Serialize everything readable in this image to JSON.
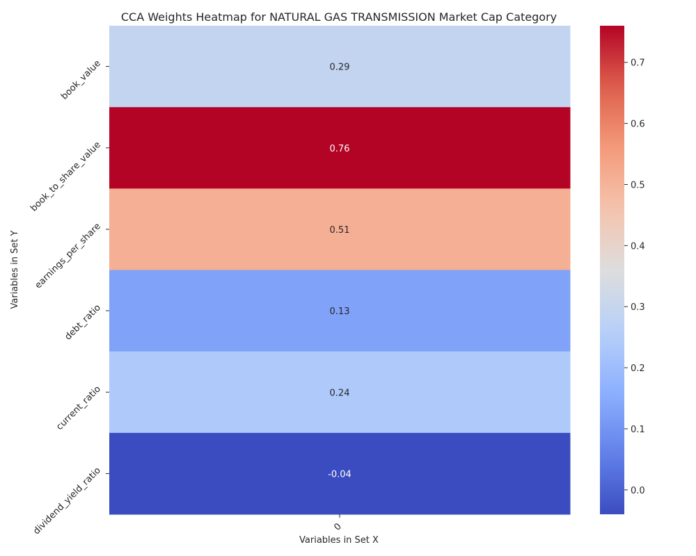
{
  "chart_data": {
    "type": "heatmap",
    "title": "CCA Weights Heatmap for NATURAL GAS TRANSMISSION Market Cap Category",
    "xlabel": "Variables in Set X",
    "ylabel": "Variables in Set Y",
    "x_categories": [
      "0"
    ],
    "y_categories": [
      "book_value",
      "book_to_share_value",
      "earnings_per_share",
      "debt_ratio",
      "current_ratio",
      "dividend_yield_ratio"
    ],
    "values": [
      [
        0.29
      ],
      [
        0.76
      ],
      [
        0.51
      ],
      [
        0.13
      ],
      [
        0.24
      ],
      [
        -0.04
      ]
    ],
    "value_labels": [
      [
        "0.29"
      ],
      [
        "0.76"
      ],
      [
        "0.51"
      ],
      [
        "0.13"
      ],
      [
        "0.24"
      ],
      [
        "-0.04"
      ]
    ],
    "colormap": "coolwarm",
    "vmin": -0.04,
    "vmax": 0.76,
    "colorbar_ticks": [
      0.0,
      0.1,
      0.2,
      0.3,
      0.4,
      0.5,
      0.6,
      0.7
    ],
    "colorbar_tick_labels": [
      "0.0",
      "0.1",
      "0.2",
      "0.3",
      "0.4",
      "0.5",
      "0.6",
      "0.7"
    ],
    "annotations_shown": true,
    "legend": "colorbar-right"
  }
}
